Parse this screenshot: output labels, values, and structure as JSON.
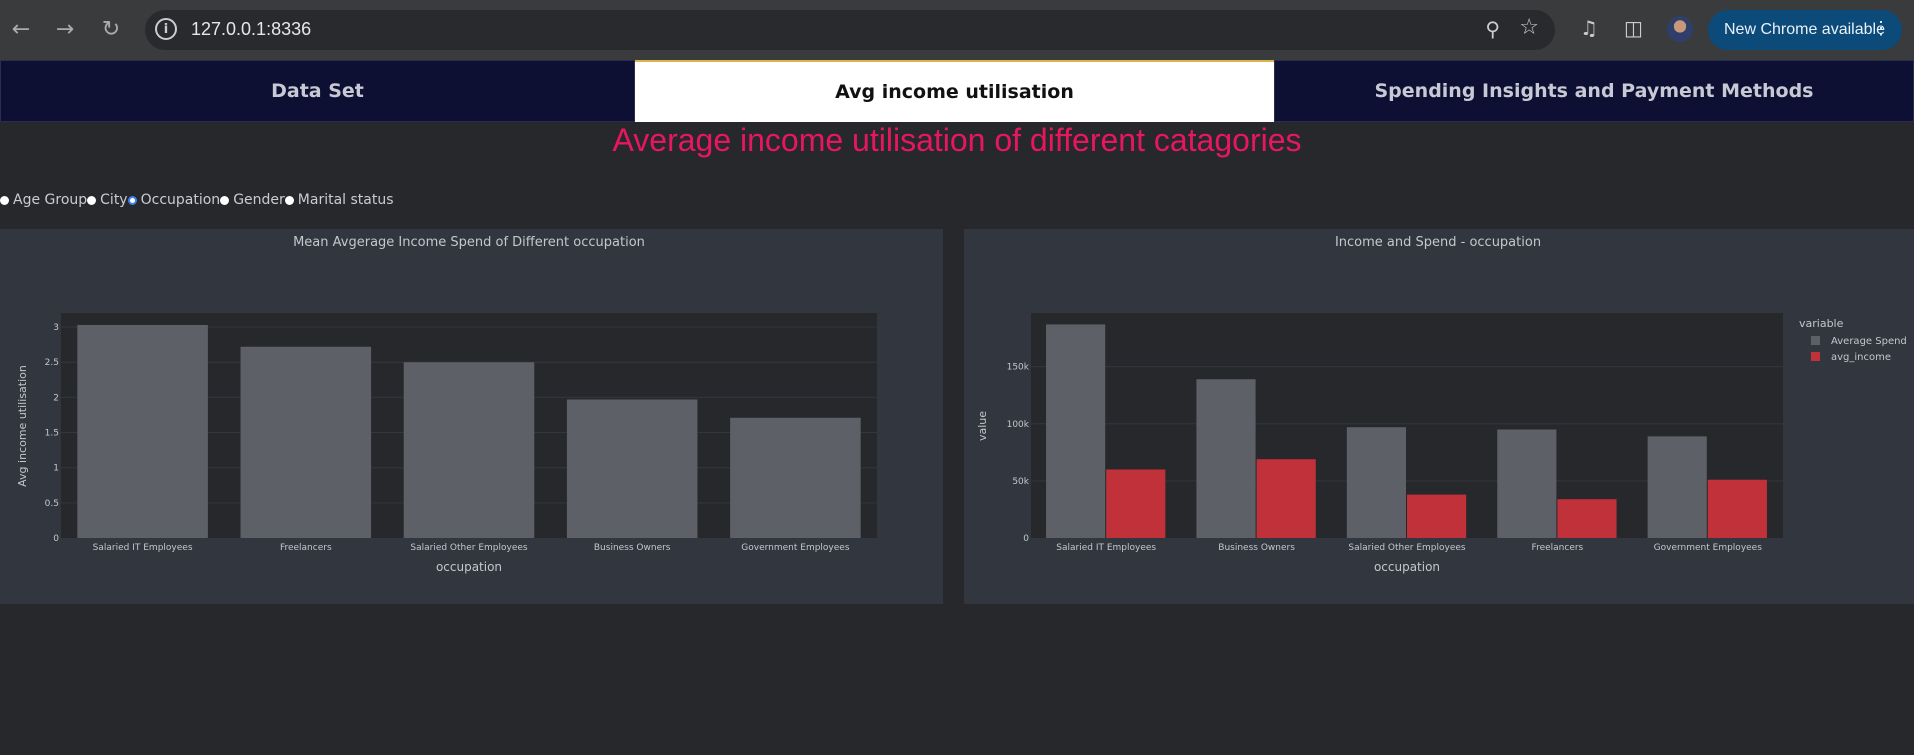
{
  "browser": {
    "url": "127.0.0.1:8336",
    "update_label": "New Chrome available",
    "icons": [
      "back-arrow-icon",
      "forward-arrow-icon",
      "reload-icon",
      "info-icon",
      "zoom-icon",
      "star-icon",
      "media-icon",
      "side-panel-icon",
      "avatar",
      "more-icon"
    ]
  },
  "tabs": [
    {
      "label": "Data Set",
      "active": false
    },
    {
      "label": "Avg income utilisation",
      "active": true
    },
    {
      "label": "Spending Insights and Payment Methods",
      "active": false
    }
  ],
  "page_title": "Average income utilisation of different catagories",
  "filter": {
    "options": [
      "Age Group",
      "City",
      "Occupation",
      "Gender",
      "Marital status"
    ],
    "selected": "Occupation"
  },
  "colors": {
    "accent_title": "#e8175d",
    "bar_grey": "#5d6066",
    "bar_red": "#c0313a",
    "tab_dark": "#0d0f33"
  },
  "chart_data": [
    {
      "type": "bar",
      "title": "Mean Avgerage Income Spend of Different occupation",
      "xlabel": "occupation",
      "ylabel": "Avg income utilisation",
      "categories": [
        "Salaried IT Employees",
        "Freelancers",
        "Salaried Other Employees",
        "Business Owners",
        "Government Employees"
      ],
      "values": [
        3.03,
        2.72,
        2.5,
        1.97,
        1.71
      ],
      "yticks": [
        "0",
        "0.5",
        "1",
        "1.5",
        "2",
        "2.5",
        "3"
      ],
      "ylim": [
        0,
        3.2
      ],
      "grid": true
    },
    {
      "type": "bar",
      "title": "Income and Spend - occupation",
      "xlabel": "occupation",
      "ylabel": "value",
      "legend_title": "variable",
      "legend_position": "top-right",
      "categories": [
        "Salaried IT Employees",
        "Business Owners",
        "Salaried Other Employees",
        "Freelancers",
        "Government Employees"
      ],
      "series": [
        {
          "name": "Average Spend",
          "values": [
            187000,
            139000,
            97000,
            95000,
            89000
          ]
        },
        {
          "name": "avg_income",
          "values": [
            60000,
            69000,
            38000,
            34000,
            51000
          ]
        }
      ],
      "ytick_values": [
        0,
        50000,
        100000,
        150000
      ],
      "yticks": [
        "0",
        "50k",
        "100k",
        "150k"
      ],
      "ylim": [
        0,
        197000
      ],
      "grid": true
    }
  ]
}
